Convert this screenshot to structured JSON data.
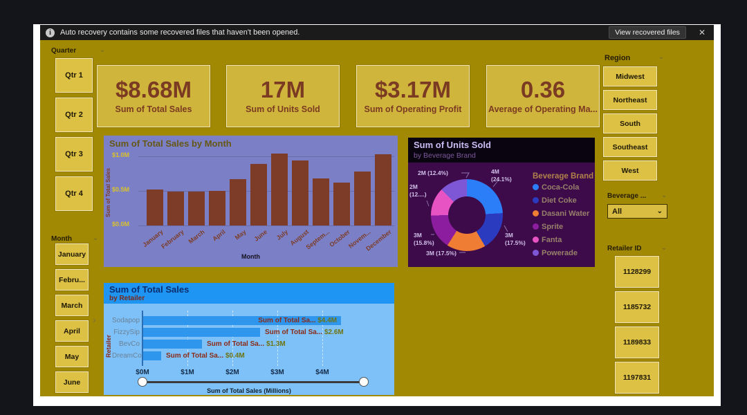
{
  "notification": {
    "message": "Auto recovery contains some recovered files that haven't been opened.",
    "action_label": "View recovered files",
    "close_glyph": "✕",
    "info_glyph": "i"
  },
  "slicers": {
    "quarter": {
      "label": "Quarter",
      "items": [
        "Qtr 1",
        "Qtr 2",
        "Qtr 3",
        "Qtr 4"
      ]
    },
    "month": {
      "label": "Month",
      "items": [
        "January",
        "Febru...",
        "March",
        "April",
        "May",
        "June"
      ]
    },
    "region": {
      "label": "Region",
      "items": [
        "Midwest",
        "Northeast",
        "South",
        "Southeast",
        "West"
      ]
    },
    "beverage": {
      "label": "Beverage ...",
      "value": "All"
    },
    "retailer_id": {
      "label": "Retailer ID",
      "items": [
        "1128299",
        "1185732",
        "1189833",
        "1197831"
      ]
    }
  },
  "kpis": [
    {
      "value": "$8.68M",
      "label": "Sum of Total Sales"
    },
    {
      "value": "17M",
      "label": "Sum of Units Sold"
    },
    {
      "value": "$3.17M",
      "label": "Sum of Operating Profit"
    },
    {
      "value": "0.36",
      "label": "Average of Operating Ma..."
    }
  ],
  "chart_data": [
    {
      "type": "bar",
      "title": "Sum of Total Sales by Month",
      "xlabel": "Month",
      "ylabel": "Sum of Total Sales",
      "categories": [
        "January",
        "February",
        "March",
        "April",
        "May",
        "June",
        "July",
        "August",
        "Septem...",
        "October",
        "Novem...",
        "December"
      ],
      "values": [
        0.52,
        0.49,
        0.49,
        0.5,
        0.67,
        0.89,
        1.04,
        0.94,
        0.68,
        0.62,
        0.78,
        1.03
      ],
      "unit": "$M",
      "yticks": [
        "$1.0M",
        "$0.5M",
        "$0.0M"
      ],
      "ylim": [
        0,
        1.1
      ],
      "bar_color": "#7c3c28",
      "grid": true,
      "legend_position": "none"
    },
    {
      "type": "pie",
      "title": "Sum of Units Sold",
      "subtitle": "by Beverage Brand",
      "legend_title": "Beverage Brand",
      "legend_position": "right",
      "slices": [
        {
          "label": "Coca-Cola",
          "value": "4M",
          "pct": 24.1,
          "color": "#2c7ef8",
          "callout": "4M\n(24.1%)"
        },
        {
          "label": "Diet Coke",
          "value": "3M",
          "pct": 17.5,
          "color": "#2b3bbf",
          "callout": "3M\n(17.5%)"
        },
        {
          "label": "Dasani Water",
          "value": "3M",
          "pct": 17.5,
          "color": "#ef7d33",
          "callout": "3M (17.5%)"
        },
        {
          "label": "Sprite",
          "value": "3M",
          "pct": 15.8,
          "color": "#8c1d9e",
          "callout": "3M\n(15.8%)"
        },
        {
          "label": "Fanta",
          "value": "2M",
          "pct": 12.7,
          "color": "#e853c4",
          "callout": "2M\n(12....)"
        },
        {
          "label": "Powerade",
          "value": "2M",
          "pct": 12.4,
          "color": "#7e57d6",
          "callout": "2M (12.4%)"
        }
      ]
    },
    {
      "type": "bar",
      "title": "Sum of Total Sales",
      "subtitle": "by Retailer",
      "ylabel": "Retailer",
      "xlabel": "Sum of Total Sales (Millions)",
      "categories": [
        "Sodapop",
        "FizzySip",
        "BevCo",
        "DreamCo"
      ],
      "values": [
        4.4,
        2.6,
        1.3,
        0.4
      ],
      "bar_labels": [
        {
          "name": "Sum of Total Sa...",
          "value": "$4.4M"
        },
        {
          "name": "Sum of Total Sa...",
          "value": "$2.6M"
        },
        {
          "name": "Sum of Total Sa...",
          "value": "$1.3M"
        },
        {
          "name": "Sum of Total Sa...",
          "value": "$0.4M"
        }
      ],
      "xticks": [
        "$0M",
        "$1M",
        "$2M",
        "$3M",
        "$4M"
      ],
      "xlim": [
        0,
        4.6
      ],
      "bar_color": "#2e96ed",
      "grid": true
    }
  ],
  "theme": {
    "page_bg": "#a28903",
    "card_bg": "#cfb53c",
    "button_bg": "#dcc145",
    "accent_brown": "#7b3a22",
    "month_chart_bg": "#7b80c6",
    "donut_bg": "#3e0b4a",
    "donut_header_bg": "#0a0410",
    "retailer_header_bg": "#1e95f2",
    "retailer_body_bg": "#7dc1f8"
  }
}
